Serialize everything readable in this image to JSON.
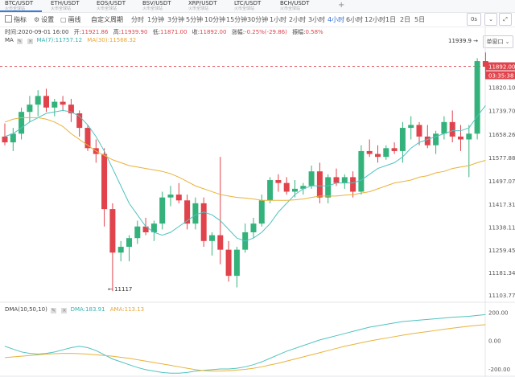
{
  "tabs": [
    {
      "symbol": "BTC/USDT",
      "sub": "火币全球站",
      "active": true
    },
    {
      "symbol": "ETH/USDT",
      "sub": "火币全球站",
      "active": false
    },
    {
      "symbol": "EOS/USDT",
      "sub": "火币全球站",
      "active": false
    },
    {
      "symbol": "BSV/USDT",
      "sub": "火币全球站",
      "active": false
    },
    {
      "symbol": "XRP/USDT",
      "sub": "火币全球站",
      "active": false
    },
    {
      "symbol": "LTC/USDT",
      "sub": "火币全球站",
      "active": false
    },
    {
      "symbol": "BCH/USDT",
      "sub": "火币全球站",
      "active": false
    }
  ],
  "tab_add": "+",
  "toolbar": {
    "indicator_label": "指标",
    "settings_label": "设置",
    "draw_label": "画线",
    "custom_period": "自定义周期",
    "periods": [
      "分时",
      "1分钟",
      "3分钟",
      "5分钟",
      "10分钟",
      "15分钟",
      "30分钟",
      "1小时",
      "2小时",
      "3小时",
      "4小时",
      "6小时",
      "12小时",
      "1日",
      "2日",
      "5日"
    ],
    "active_period": "4小时",
    "timer_label": "0s",
    "window_label": "单窗口"
  },
  "info": {
    "time_label": "时间",
    "time": "2020-09-01 16:00",
    "open_label": "开",
    "open": "11921.86",
    "high_label": "高",
    "high": "11939.90",
    "low_label": "低",
    "low": "11871.00",
    "close_label": "收",
    "close": "11892.00",
    "change_label": "涨幅",
    "change": "-0.25%(-29.86)",
    "amp_label": "振幅",
    "amp": "0.58%"
  },
  "ma": {
    "label": "MA",
    "ma7_label": "MA(7):",
    "ma7": "11757.12",
    "ma30_label": "MA(30):",
    "ma30": "11568.32"
  },
  "dma": {
    "label": "DMA(10,50,10)",
    "dma_label": "DMA:",
    "dma": "183.91",
    "ama_label": "AMA:",
    "ama": "113.13"
  },
  "price_axis": [
    "11899.71",
    "11820.10",
    "11739.70",
    "11658.26",
    "11577.88",
    "11497.07",
    "11417.31",
    "11338.11",
    "11259.45",
    "11181.34",
    "11103.77"
  ],
  "price_current": "11892.00",
  "countdown": "03:35:38",
  "high_marker": "11939.9",
  "low_marker": "11117",
  "dma_axis": [
    "200.00",
    "0.00",
    "-200.00"
  ],
  "colors": {
    "up": "#34b27b",
    "down": "#e0434b",
    "ma7": "#4fc3c0",
    "ma30": "#e9b23a",
    "accent": "#2f6fd6"
  },
  "candles": [
    [
      11650,
      11695,
      11620,
      11630
    ],
    [
      11630,
      11680,
      11600,
      11660
    ],
    [
      11660,
      11750,
      11640,
      11735
    ],
    [
      11735,
      11790,
      11700,
      11760
    ],
    [
      11760,
      11810,
      11720,
      11790
    ],
    [
      11790,
      11815,
      11735,
      11750
    ],
    [
      11750,
      11780,
      11720,
      11770
    ],
    [
      11770,
      11790,
      11740,
      11760
    ],
    [
      11760,
      11780,
      11700,
      11730
    ],
    [
      11730,
      11740,
      11650,
      11680
    ],
    [
      11680,
      11690,
      11600,
      11610
    ],
    [
      11610,
      11640,
      11560,
      11590
    ],
    [
      11590,
      11610,
      11340,
      11400
    ],
    [
      11400,
      11420,
      11117,
      11250
    ],
    [
      11250,
      11290,
      11220,
      11270
    ],
    [
      11270,
      11310,
      11220,
      11300
    ],
    [
      11300,
      11360,
      11280,
      11340
    ],
    [
      11340,
      11370,
      11310,
      11320
    ],
    [
      11320,
      11360,
      11290,
      11350
    ],
    [
      11350,
      11460,
      11330,
      11440
    ],
    [
      11440,
      11480,
      11410,
      11450
    ],
    [
      11450,
      11490,
      11420,
      11430
    ],
    [
      11430,
      11450,
      11330,
      11350
    ],
    [
      11350,
      11440,
      11330,
      11420
    ],
    [
      11420,
      11440,
      11270,
      11290
    ],
    [
      11290,
      11320,
      11240,
      11310
    ],
    [
      11310,
      11580,
      11210,
      11260
    ],
    [
      11260,
      11290,
      11150,
      11170
    ],
    [
      11170,
      11270,
      11130,
      11260
    ],
    [
      11260,
      11350,
      11250,
      11320
    ],
    [
      11320,
      11370,
      11300,
      11350
    ],
    [
      11350,
      11450,
      11340,
      11430
    ],
    [
      11430,
      11510,
      11420,
      11500
    ],
    [
      11500,
      11520,
      11460,
      11490
    ],
    [
      11490,
      11510,
      11450,
      11460
    ],
    [
      11460,
      11500,
      11440,
      11470
    ],
    [
      11470,
      11490,
      11450,
      11480
    ],
    [
      11480,
      11550,
      11470,
      11530
    ],
    [
      11530,
      11560,
      11420,
      11440
    ],
    [
      11440,
      11520,
      11420,
      11510
    ],
    [
      11510,
      11540,
      11480,
      11490
    ],
    [
      11490,
      11520,
      11470,
      11510
    ],
    [
      11510,
      11530,
      11440,
      11460
    ],
    [
      11460,
      11620,
      11450,
      11600
    ],
    [
      11600,
      11640,
      11580,
      11590
    ],
    [
      11590,
      11620,
      11560,
      11580
    ],
    [
      11580,
      11620,
      11570,
      11610
    ],
    [
      11610,
      11630,
      11590,
      11600
    ],
    [
      11600,
      11700,
      11560,
      11680
    ],
    [
      11680,
      11720,
      11640,
      11690
    ],
    [
      11690,
      11700,
      11620,
      11650
    ],
    [
      11650,
      11690,
      11610,
      11620
    ],
    [
      11620,
      11670,
      11590,
      11660
    ],
    [
      11660,
      11720,
      11640,
      11700
    ],
    [
      11700,
      11740,
      11630,
      11650
    ],
    [
      11650,
      11690,
      11600,
      11640
    ],
    [
      11640,
      11690,
      11510,
      11660
    ],
    [
      11660,
      11920,
      11640,
      11910
    ],
    [
      11910,
      11939.9,
      11871,
      11892
    ]
  ],
  "ma7_series": [
    11650,
    11660,
    11680,
    11700,
    11715,
    11730,
    11735,
    11740,
    11735,
    11720,
    11690,
    11650,
    11600,
    11540,
    11480,
    11420,
    11380,
    11340,
    11320,
    11310,
    11320,
    11340,
    11360,
    11380,
    11390,
    11380,
    11360,
    11330,
    11300,
    11290,
    11300,
    11320,
    11350,
    11390,
    11420,
    11450,
    11470,
    11480,
    11480,
    11480,
    11490,
    11490,
    11490,
    11500,
    11520,
    11540,
    11550,
    11560,
    11580,
    11610,
    11630,
    11640,
    11650,
    11660,
    11670,
    11670,
    11680,
    11720,
    11757
  ],
  "ma30_series": [
    11700,
    11710,
    11715,
    11715,
    11715,
    11710,
    11700,
    11685,
    11660,
    11640,
    11620,
    11600,
    11585,
    11570,
    11560,
    11550,
    11545,
    11540,
    11535,
    11530,
    11522,
    11510,
    11495,
    11480,
    11470,
    11460,
    11450,
    11445,
    11440,
    11438,
    11435,
    11430,
    11430,
    11430,
    11430,
    11432,
    11435,
    11440,
    11445,
    11445,
    11445,
    11448,
    11450,
    11455,
    11460,
    11470,
    11480,
    11490,
    11495,
    11500,
    11510,
    11515,
    11525,
    11530,
    11540,
    11545,
    11550,
    11560,
    11568
  ],
  "dma_series": [
    -40,
    -60,
    -80,
    -90,
    -95,
    -90,
    -80,
    -65,
    -50,
    -40,
    -50,
    -70,
    -100,
    -130,
    -150,
    -170,
    -190,
    -205,
    -215,
    -225,
    -230,
    -230,
    -225,
    -215,
    -210,
    -205,
    -200,
    -200,
    -195,
    -185,
    -170,
    -150,
    -125,
    -100,
    -75,
    -55,
    -35,
    -15,
    5,
    20,
    35,
    50,
    65,
    80,
    95,
    105,
    115,
    125,
    135,
    140,
    145,
    150,
    155,
    160,
    165,
    168,
    172,
    178,
    184
  ],
  "ama_series": [
    -120,
    -115,
    -110,
    -105,
    -100,
    -95,
    -92,
    -90,
    -90,
    -92,
    -95,
    -100,
    -105,
    -110,
    -118,
    -125,
    -135,
    -145,
    -155,
    -165,
    -175,
    -185,
    -195,
    -205,
    -212,
    -215,
    -215,
    -212,
    -208,
    -203,
    -195,
    -185,
    -172,
    -160,
    -145,
    -130,
    -115,
    -100,
    -85,
    -70,
    -55,
    -40,
    -28,
    -15,
    -3,
    8,
    18,
    28,
    38,
    48,
    56,
    64,
    72,
    80,
    88,
    95,
    102,
    108,
    113
  ]
}
